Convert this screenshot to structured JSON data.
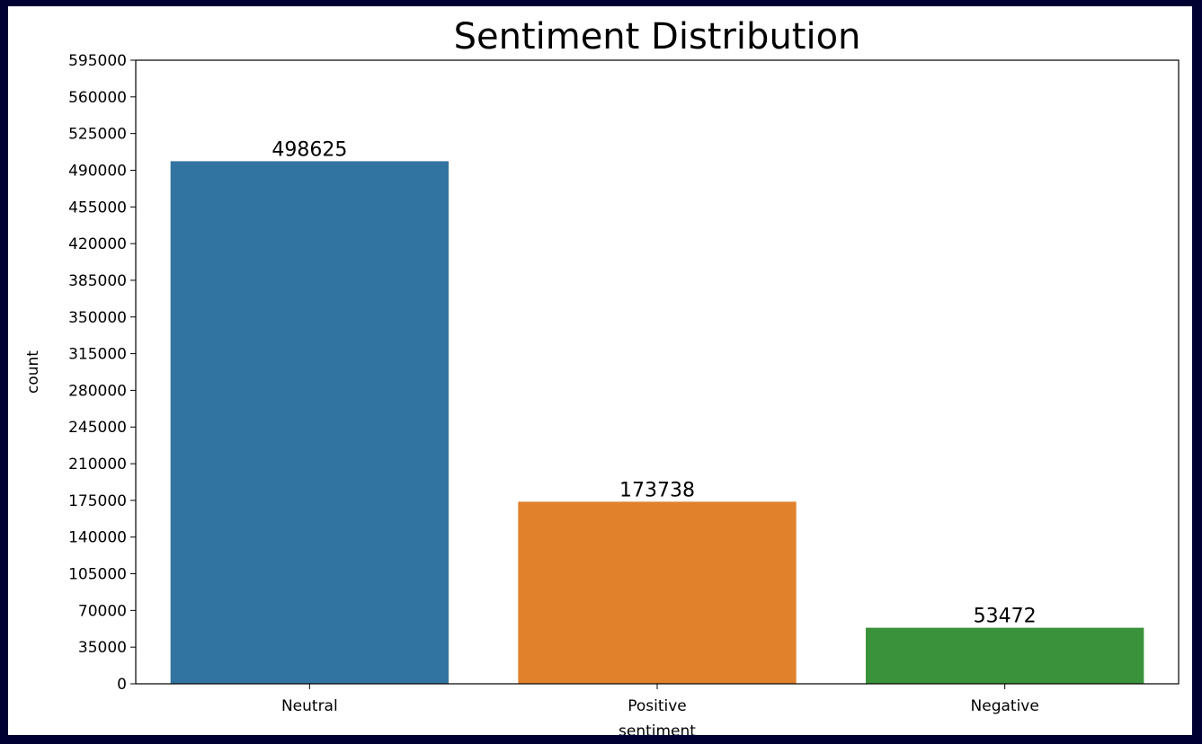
{
  "chart_data": {
    "type": "bar",
    "title": "Sentiment Distribution",
    "xlabel": "sentiment",
    "ylabel": "count",
    "categories": [
      "Neutral",
      "Positive",
      "Negative"
    ],
    "values": [
      498625,
      173738,
      53472
    ],
    "data_labels": [
      "498625",
      "173738",
      "53472"
    ],
    "colors": [
      "#3274a1",
      "#e1812c",
      "#3a923a"
    ],
    "ylim": [
      0,
      595000
    ],
    "yticks": [
      0,
      35000,
      70000,
      105000,
      140000,
      175000,
      210000,
      245000,
      280000,
      315000,
      350000,
      385000,
      420000,
      455000,
      490000,
      525000,
      560000,
      595000
    ],
    "grid": false,
    "legend": "none"
  }
}
